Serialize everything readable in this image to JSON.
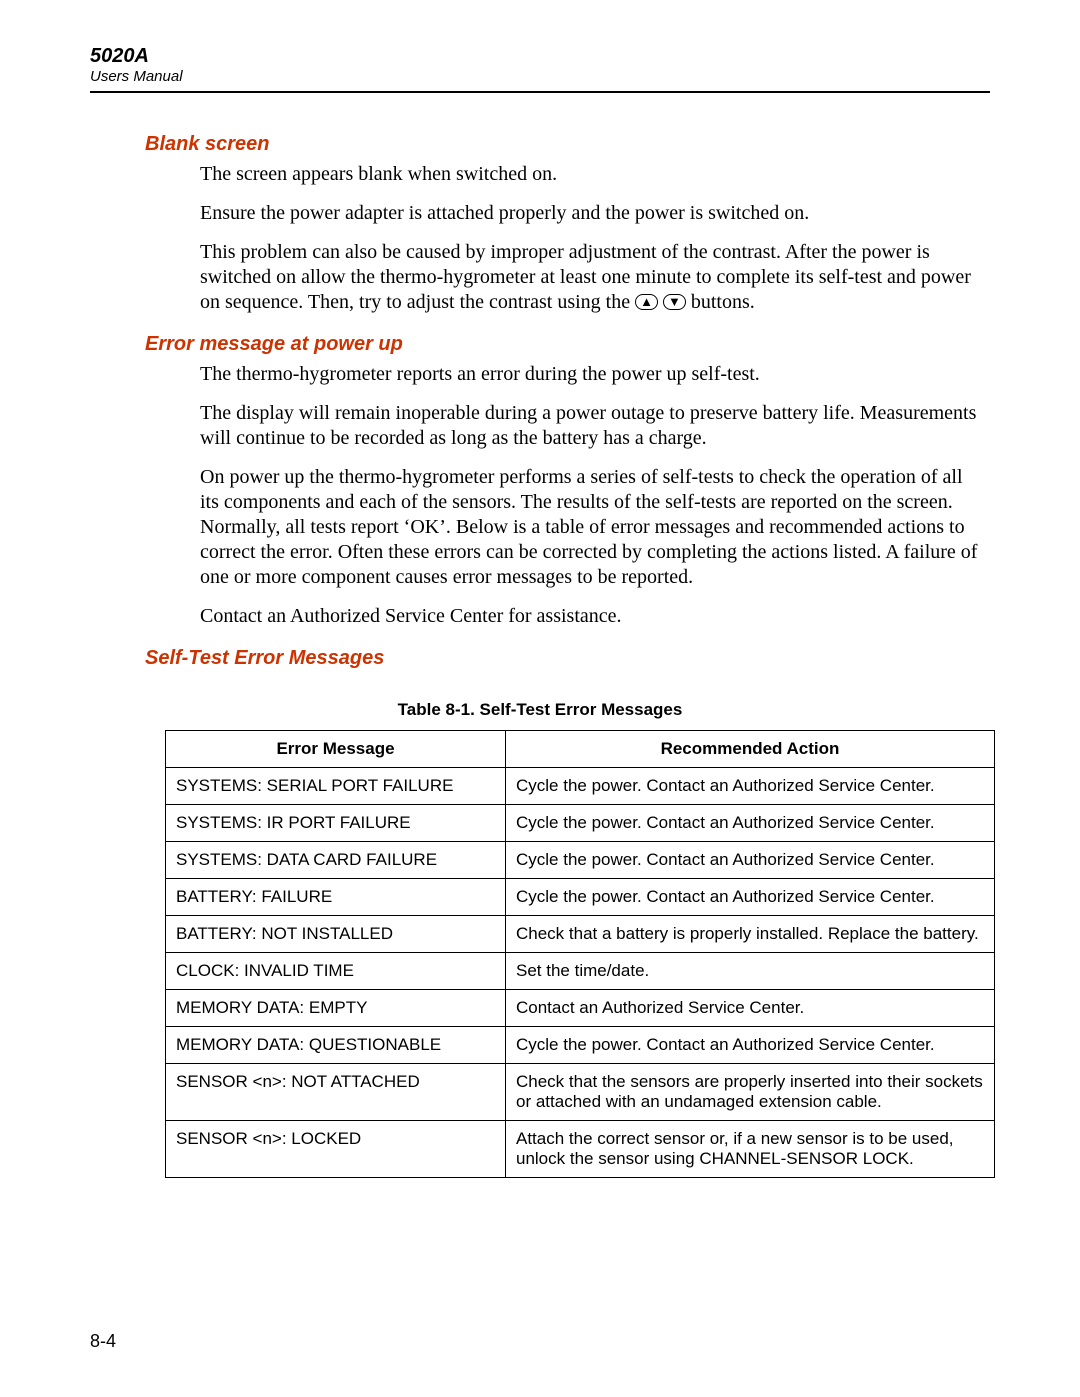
{
  "header": {
    "model": "5020A",
    "subtitle": "Users Manual"
  },
  "sections": {
    "blank_screen": {
      "heading": "Blank screen",
      "p1": "The screen appears blank when switched on.",
      "p2": "Ensure the power adapter is attached properly and the power is switched on.",
      "p3a": "This problem can also be caused by improper adjustment of the contrast. After the power is switched on allow the thermo-hygrometer at least one minute to complete its self-test and power on sequence. Then, try to adjust the contrast using the ",
      "p3b": " buttons."
    },
    "error_power_up": {
      "heading": "Error message at power up",
      "p1": "The thermo-hygrometer reports an error during the power up self-test.",
      "p2": "The display will remain inoperable during a power outage to preserve battery life. Measurements will continue to be recorded as long as the battery has a charge.",
      "p3": "On power up the thermo-hygrometer performs a series of self-tests to check the operation of all its components and each of the sensors. The results of the self-tests are reported on the screen. Normally, all tests report ‘OK’. Below is a table of error messages and recommended actions to correct the error. Often these errors can be corrected by completing the actions listed. A failure of one or more component causes error messages to be reported.",
      "p4": "Contact an Authorized Service Center for assistance."
    },
    "self_test": {
      "heading": "Self-Test Error Messages"
    }
  },
  "table": {
    "caption": "Table 8-1. Self-Test Error Messages",
    "col1": "Error Message",
    "col2": "Recommended Action",
    "rows": [
      {
        "msg": "SYSTEMS: SERIAL PORT FAILURE",
        "action": "Cycle the power. Contact an Authorized Service Center."
      },
      {
        "msg": "SYSTEMS: IR PORT FAILURE",
        "action": "Cycle the power. Contact an Authorized Service Center."
      },
      {
        "msg": "SYSTEMS: DATA CARD FAILURE",
        "action": "Cycle the power. Contact an Authorized Service Center."
      },
      {
        "msg": "BATTERY: FAILURE",
        "action": "Cycle the power. Contact an Authorized Service Center."
      },
      {
        "msg": "BATTERY: NOT INSTALLED",
        "action": "Check that a battery is properly installed. Replace the battery."
      },
      {
        "msg": "CLOCK: INVALID TIME",
        "action": "Set the time/date."
      },
      {
        "msg": "MEMORY DATA: EMPTY",
        "action": "Contact an Authorized Service Center."
      },
      {
        "msg": "MEMORY DATA: QUESTIONABLE",
        "action": "Cycle the power. Contact an Authorized Service Center."
      },
      {
        "msg": "SENSOR <n>: NOT ATTACHED",
        "action": "Check that the sensors are properly inserted into their sockets or attached with an undamaged extension cable."
      },
      {
        "msg": "SENSOR <n>: LOCKED",
        "action": "Attach the correct sensor or, if a new sensor is to be used, unlock the sensor using CHANNEL-SENSOR LOCK."
      }
    ]
  },
  "page_number": "8-4",
  "colors": {
    "heading": "#cc3300",
    "text": "#000000",
    "background": "#ffffff"
  }
}
